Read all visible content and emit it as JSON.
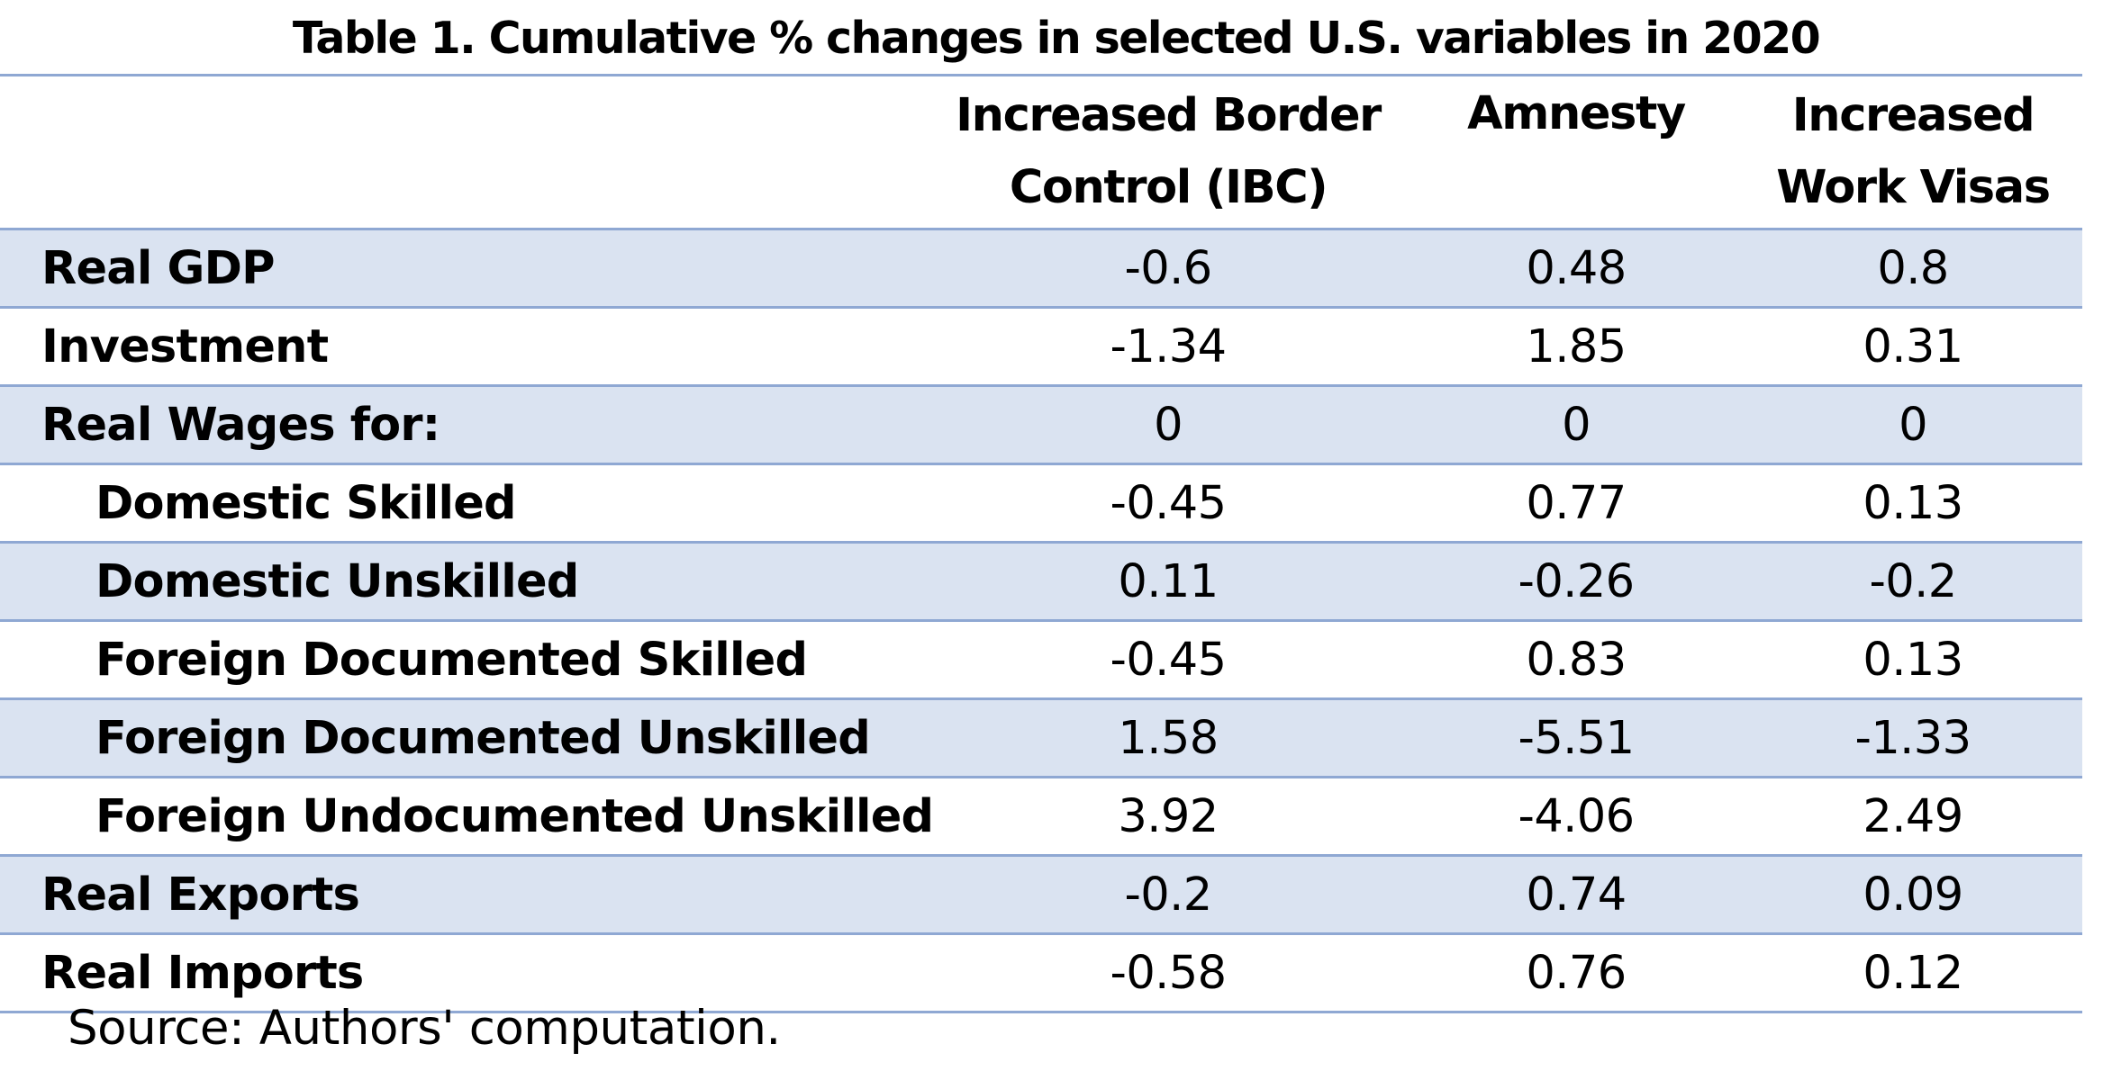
{
  "table": {
    "title": "Table 1. Cumulative % changes in selected U.S. variables in 2020",
    "columns": {
      "ibc": [
        "Increased Border",
        "Control (IBC)"
      ],
      "amnesty": [
        "Amnesty"
      ],
      "work_visas": [
        "Increased",
        "Work Visas"
      ]
    },
    "rows": [
      {
        "label": "Real GDP",
        "ibc": "-0.6",
        "amnesty": "0.48",
        "work_visas": "0.8"
      },
      {
        "label": "Investment",
        "ibc": "-1.34",
        "amnesty": "1.85",
        "work_visas": "0.31"
      },
      {
        "label": "Real Wages for:",
        "ibc": "0",
        "amnesty": "0",
        "work_visas": "0"
      },
      {
        "label": "Domestic Skilled",
        "ibc": "-0.45",
        "amnesty": "0.77",
        "work_visas": "0.13"
      },
      {
        "label": "Domestic Unskilled",
        "ibc": "0.11",
        "amnesty": "-0.26",
        "work_visas": "-0.2"
      },
      {
        "label": "Foreign Documented Skilled",
        "ibc": "-0.45",
        "amnesty": "0.83",
        "work_visas": "0.13"
      },
      {
        "label": "Foreign Documented Unskilled",
        "ibc": "1.58",
        "amnesty": "-5.51",
        "work_visas": "-1.33"
      },
      {
        "label": "Foreign Undocumented Unskilled",
        "ibc": "3.92",
        "amnesty": "-4.06",
        "work_visas": "2.49"
      },
      {
        "label": "Real Exports",
        "ibc": "-0.2",
        "amnesty": "0.74",
        "work_visas": "0.09"
      },
      {
        "label": "Real Imports",
        "ibc": "-0.58",
        "amnesty": "0.76",
        "work_visas": "0.12"
      }
    ],
    "source": "Source: Authors' computation."
  },
  "colors": {
    "row_shade": "#dae3f1",
    "rule": "#8fa8d3",
    "text": "#000000"
  }
}
